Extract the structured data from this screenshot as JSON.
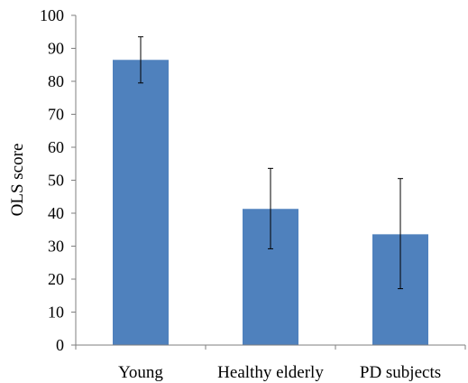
{
  "chart_data": {
    "type": "bar",
    "title": "",
    "xlabel": "",
    "ylabel": "OLS score",
    "ylim": [
      0,
      100
    ],
    "yticks": [
      0,
      10,
      20,
      30,
      40,
      50,
      60,
      70,
      80,
      90,
      100
    ],
    "categories": [
      "Young",
      "Healthy elderly",
      "PD subjects"
    ],
    "series": [
      {
        "values": [
          86.5,
          41.3,
          33.6
        ],
        "error_low": [
          79.5,
          29.2,
          17.1
        ],
        "error_high": [
          93.5,
          53.6,
          50.5
        ]
      }
    ],
    "colors": {
      "bar": "#4f81bd",
      "axis": "#7f7f7f",
      "error_bar": "#000000"
    },
    "grid": false,
    "legend": "none"
  }
}
